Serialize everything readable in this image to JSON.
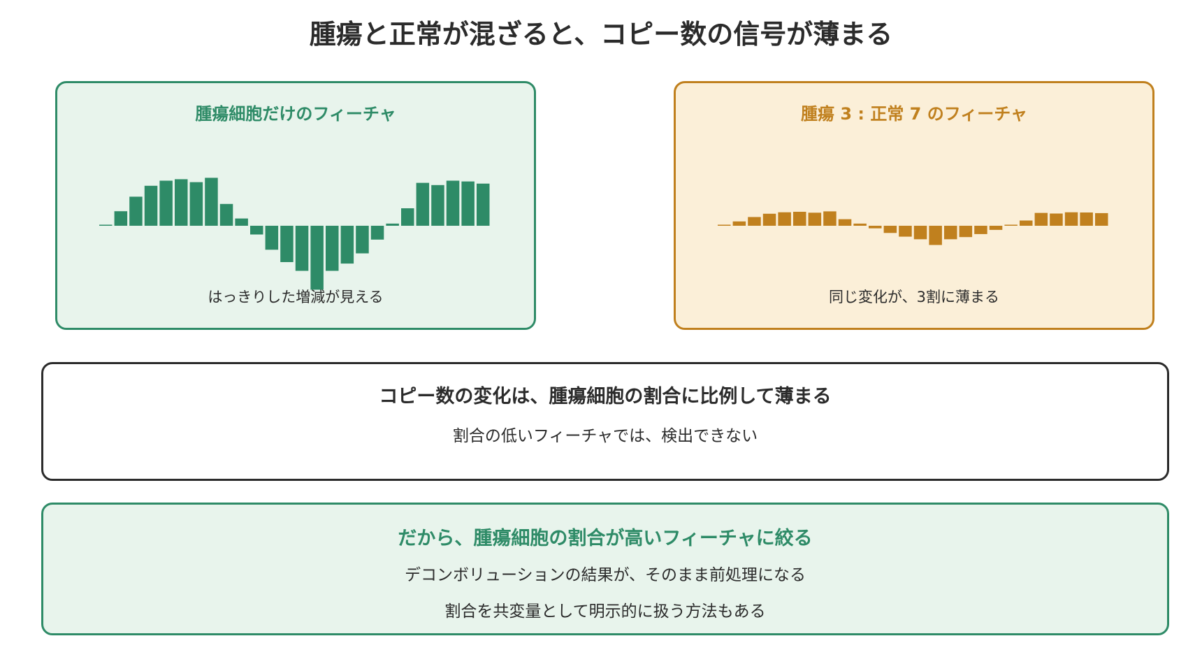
{
  "title": "腫瘍と正常が混ざると、コピー数の信号が薄まる",
  "colors": {
    "green": "#2e8b67",
    "green_bg": "#e8f4ec",
    "orange": "#c0801e",
    "orange_bg": "#fbefd8",
    "dark": "#2b2b2b"
  },
  "left_panel": {
    "title": "腫瘍細胞だけのフィーチャ",
    "caption": "はっきりした増減が見える"
  },
  "right_panel": {
    "title": "腫瘍 3 : 正常 7 のフィーチャ",
    "caption": "同じ変化が、3割に薄まる"
  },
  "chart_data": [
    {
      "type": "bar",
      "series": [
        {
          "values": [
            0,
            2,
            4,
            5.5,
            6.2,
            6.4,
            6,
            6.6,
            3,
            1,
            -1.2,
            -3.3,
            -5,
            -6.2,
            -8.8,
            -6.2,
            -5.2,
            -3.8,
            -1.9,
            0.3,
            2.4,
            5.9,
            5.6,
            6.2,
            6.1,
            5.8
          ]
        }
      ]
    },
    {
      "type": "bar",
      "series": [
        {
          "values": [
            0,
            0.6,
            1.2,
            1.65,
            1.86,
            1.92,
            1.8,
            1.98,
            0.9,
            0.3,
            -0.36,
            -0.99,
            -1.5,
            -1.86,
            -2.64,
            -1.86,
            -1.56,
            -1.14,
            -0.57,
            0.09,
            0.72,
            1.77,
            1.68,
            1.86,
            1.83,
            1.74
          ]
        }
      ]
    }
  ],
  "middle_box": {
    "heading": "コピー数の変化は、腫瘍細胞の割合に比例して薄まる",
    "sub": "割合の低いフィーチャでは、検出できない"
  },
  "bottom_box": {
    "heading": "だから、腫瘍細胞の割合が高いフィーチャに絞る",
    "line1": "デコンボリューションの結果が、そのまま前処理になる",
    "line2": "割合を共変量として明示的に扱う方法もある"
  }
}
